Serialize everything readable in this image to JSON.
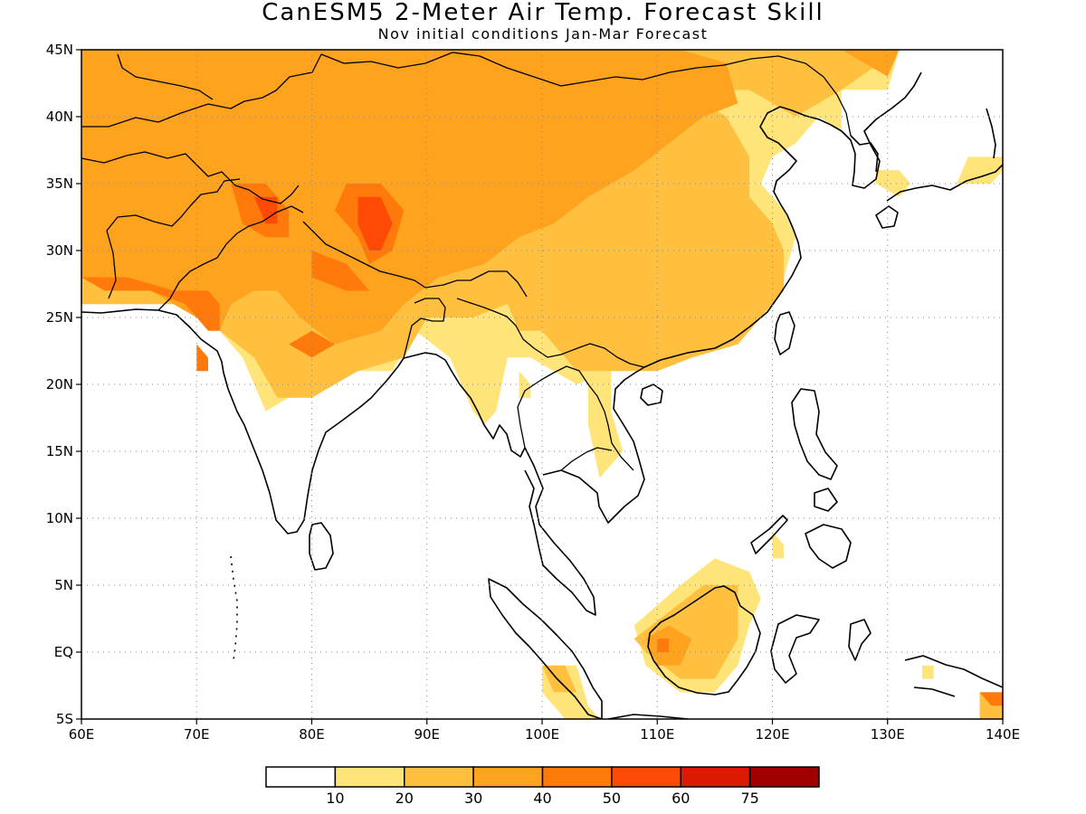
{
  "title": "CanESM5 2-Meter Air Temp. Forecast Skill",
  "subtitle": "Nov initial conditions   Jan-Mar Forecast",
  "map": {
    "lon_range": [
      60,
      140
    ],
    "lat_range": [
      -5,
      45
    ],
    "lon_ticks": [
      {
        "value": 60,
        "label": "60E"
      },
      {
        "value": 70,
        "label": "70E"
      },
      {
        "value": 80,
        "label": "80E"
      },
      {
        "value": 90,
        "label": "90E"
      },
      {
        "value": 100,
        "label": "100E"
      },
      {
        "value": 110,
        "label": "110E"
      },
      {
        "value": 120,
        "label": "120E"
      },
      {
        "value": 130,
        "label": "130E"
      },
      {
        "value": 140,
        "label": "140E"
      }
    ],
    "lat_ticks": [
      {
        "value": 45,
        "label": "45N"
      },
      {
        "value": 40,
        "label": "40N"
      },
      {
        "value": 35,
        "label": "35N"
      },
      {
        "value": 30,
        "label": "30N"
      },
      {
        "value": 25,
        "label": "25N"
      },
      {
        "value": 20,
        "label": "20N"
      },
      {
        "value": 15,
        "label": "15N"
      },
      {
        "value": 10,
        "label": "10N"
      },
      {
        "value": 5,
        "label": "5N"
      },
      {
        "value": 0,
        "label": "EQ"
      },
      {
        "value": -5,
        "label": "5S"
      }
    ],
    "gridlines": "dotted",
    "skill_regions": [
      {
        "level": 1,
        "poly": [
          [
            60,
            26
          ],
          [
            70,
            26
          ],
          [
            72,
            24
          ],
          [
            74,
            22
          ],
          [
            76,
            18
          ],
          [
            78,
            19
          ],
          [
            82,
            21
          ],
          [
            87,
            21
          ],
          [
            89,
            24
          ],
          [
            92,
            22
          ],
          [
            94,
            18
          ],
          [
            95,
            17
          ],
          [
            96,
            18
          ],
          [
            97,
            22
          ],
          [
            99,
            22
          ],
          [
            103,
            20
          ],
          [
            106,
            21
          ],
          [
            110,
            21
          ],
          [
            113,
            22
          ],
          [
            117,
            23
          ],
          [
            119,
            25
          ],
          [
            121,
            28
          ],
          [
            122,
            31
          ],
          [
            121,
            33
          ],
          [
            119,
            35
          ],
          [
            120,
            37
          ],
          [
            122,
            38
          ],
          [
            124,
            40
          ],
          [
            126,
            39
          ],
          [
            126,
            42
          ],
          [
            130,
            42
          ],
          [
            131,
            45
          ],
          [
            60,
            45
          ]
        ]
      },
      {
        "level": 1,
        "poly": [
          [
            129,
            35
          ],
          [
            131,
            34
          ],
          [
            132,
            35
          ],
          [
            131,
            36
          ],
          [
            129,
            36
          ]
        ]
      },
      {
        "level": 1,
        "poly": [
          [
            136,
            35
          ],
          [
            139,
            35
          ],
          [
            140,
            36
          ],
          [
            140,
            37
          ],
          [
            137,
            37
          ]
        ]
      },
      {
        "level": 1,
        "poly": [
          [
            108,
            2
          ],
          [
            112,
            5
          ],
          [
            115,
            7
          ],
          [
            118,
            6
          ],
          [
            119,
            4
          ],
          [
            118,
            2
          ],
          [
            117,
            -1
          ],
          [
            115,
            -3
          ],
          [
            112,
            -3
          ],
          [
            109,
            -1
          ]
        ]
      },
      {
        "level": 1,
        "poly": [
          [
            100,
            -1
          ],
          [
            103,
            -1
          ],
          [
            104,
            -4
          ],
          [
            105,
            -5
          ],
          [
            102,
            -5
          ],
          [
            100,
            -3
          ]
        ]
      },
      {
        "level": 1,
        "poly": [
          [
            104,
            22
          ],
          [
            106,
            21
          ],
          [
            106,
            18
          ],
          [
            107,
            15
          ],
          [
            105,
            13
          ],
          [
            104,
            17
          ]
        ]
      },
      {
        "level": 1,
        "poly": [
          [
            120,
            9
          ],
          [
            121,
            8
          ],
          [
            121,
            7
          ],
          [
            120,
            7
          ]
        ]
      },
      {
        "level": 1,
        "poly": [
          [
            133,
            -1
          ],
          [
            134,
            -1
          ],
          [
            134,
            -2
          ],
          [
            133,
            -2
          ]
        ]
      },
      {
        "level": 1,
        "poly": [
          [
            98,
            21
          ],
          [
            99,
            20
          ],
          [
            99,
            19
          ],
          [
            98,
            19
          ]
        ]
      },
      {
        "level": 2,
        "poly": [
          [
            60,
            26
          ],
          [
            68,
            26
          ],
          [
            72,
            24
          ],
          [
            75,
            22
          ],
          [
            77,
            19
          ],
          [
            80,
            19
          ],
          [
            84,
            21
          ],
          [
            88,
            22
          ],
          [
            90,
            25
          ],
          [
            94,
            25
          ],
          [
            97,
            26
          ],
          [
            98,
            24
          ],
          [
            100,
            24
          ],
          [
            103,
            21
          ],
          [
            107,
            21
          ],
          [
            110,
            21
          ],
          [
            113,
            22
          ],
          [
            117,
            23
          ],
          [
            119,
            25
          ],
          [
            121,
            27
          ],
          [
            121,
            30
          ],
          [
            120,
            32
          ],
          [
            118,
            34
          ],
          [
            118,
            37
          ],
          [
            116,
            40
          ],
          [
            112,
            42
          ],
          [
            110,
            45
          ],
          [
            60,
            45
          ]
        ]
      },
      {
        "level": 2,
        "poly": [
          [
            122,
            40
          ],
          [
            126,
            42
          ],
          [
            131,
            45
          ],
          [
            108,
            45
          ],
          [
            110,
            43
          ],
          [
            114,
            42
          ],
          [
            118,
            42
          ]
        ]
      },
      {
        "level": 2,
        "poly": [
          [
            108,
            1
          ],
          [
            111,
            3
          ],
          [
            114,
            5
          ],
          [
            117,
            5
          ],
          [
            117,
            1
          ],
          [
            115,
            -2
          ],
          [
            112,
            -2
          ],
          [
            109,
            0
          ]
        ]
      },
      {
        "level": 2,
        "poly": [
          [
            100,
            -1
          ],
          [
            102,
            -1
          ],
          [
            103,
            -3
          ],
          [
            101,
            -3
          ]
        ]
      },
      {
        "level": 2,
        "poly": [
          [
            138,
            -3
          ],
          [
            140,
            -3
          ],
          [
            140,
            -5
          ],
          [
            138,
            -5
          ]
        ]
      },
      {
        "level": 3,
        "poly": [
          [
            60,
            28
          ],
          [
            64,
            27
          ],
          [
            66,
            27
          ],
          [
            68,
            26
          ],
          [
            70,
            25
          ],
          [
            72,
            24
          ],
          [
            73,
            26
          ],
          [
            75,
            27
          ],
          [
            77,
            27
          ],
          [
            79,
            25
          ],
          [
            82,
            23
          ],
          [
            86,
            24
          ],
          [
            88,
            26
          ],
          [
            91,
            28
          ],
          [
            95,
            29
          ],
          [
            98,
            31
          ],
          [
            101,
            32
          ],
          [
            104,
            34
          ],
          [
            108,
            36
          ],
          [
            111,
            38
          ],
          [
            114,
            40
          ],
          [
            117,
            41
          ],
          [
            116,
            44
          ],
          [
            112,
            45
          ],
          [
            60,
            45
          ]
        ]
      },
      {
        "level": 3,
        "poly": [
          [
            66,
            36
          ],
          [
            70,
            37
          ],
          [
            72,
            34
          ],
          [
            68,
            33
          ],
          [
            65,
            34
          ]
        ]
      },
      {
        "level": 3,
        "poly": [
          [
            109,
            1
          ],
          [
            111,
            2
          ],
          [
            113,
            1
          ],
          [
            112,
            -1
          ],
          [
            110,
            -1
          ]
        ]
      },
      {
        "level": 3,
        "poly": [
          [
            126,
            45
          ],
          [
            130,
            43
          ],
          [
            131,
            45
          ]
        ]
      },
      {
        "level": 4,
        "poly": [
          [
            60,
            28
          ],
          [
            62,
            27
          ],
          [
            66,
            27
          ],
          [
            69,
            26
          ],
          [
            70,
            25
          ],
          [
            71,
            24
          ],
          [
            72,
            24
          ],
          [
            72,
            26
          ],
          [
            71,
            27
          ],
          [
            68,
            27
          ],
          [
            64,
            28
          ]
        ]
      },
      {
        "level": 4,
        "poly": [
          [
            73,
            35
          ],
          [
            76,
            35
          ],
          [
            78,
            33
          ],
          [
            78,
            31
          ],
          [
            76,
            31
          ],
          [
            74,
            32
          ]
        ]
      },
      {
        "level": 4,
        "poly": [
          [
            83,
            35
          ],
          [
            86,
            35
          ],
          [
            88,
            33
          ],
          [
            87,
            30
          ],
          [
            85,
            29
          ],
          [
            84,
            31
          ],
          [
            82,
            33
          ]
        ]
      },
      {
        "level": 4,
        "poly": [
          [
            80,
            30
          ],
          [
            83,
            29
          ],
          [
            85,
            27
          ],
          [
            83,
            27
          ],
          [
            80,
            28
          ]
        ]
      },
      {
        "level": 4,
        "poly": [
          [
            78,
            23
          ],
          [
            80,
            22
          ],
          [
            82,
            23
          ],
          [
            80,
            24
          ]
        ]
      },
      {
        "level": 4,
        "poly": [
          [
            110,
            1
          ],
          [
            111,
            1
          ],
          [
            111,
            0
          ],
          [
            110,
            0
          ]
        ]
      },
      {
        "level": 4,
        "poly": [
          [
            138,
            -3
          ],
          [
            140,
            -3
          ],
          [
            140,
            -4
          ],
          [
            139,
            -4
          ]
        ]
      },
      {
        "level": 4,
        "poly": [
          [
            70,
            23
          ],
          [
            71,
            22
          ],
          [
            71,
            21
          ],
          [
            70,
            21
          ]
        ]
      },
      {
        "level": 5,
        "poly": [
          [
            75,
            34
          ],
          [
            77,
            34
          ],
          [
            77,
            32
          ],
          [
            76,
            32
          ]
        ]
      },
      {
        "level": 5,
        "poly": [
          [
            84,
            34
          ],
          [
            86,
            34
          ],
          [
            87,
            32
          ],
          [
            86,
            30
          ],
          [
            85,
            30
          ],
          [
            84,
            32
          ]
        ]
      }
    ],
    "colorbar": {
      "colors": [
        "#ffffff",
        "#ffe47a",
        "#ffc040",
        "#ffa21e",
        "#ff7a0a",
        "#ff4a05",
        "#dd1a00",
        "#a00000"
      ],
      "labels": [
        "10",
        "20",
        "30",
        "40",
        "50",
        "60",
        "75"
      ]
    }
  }
}
